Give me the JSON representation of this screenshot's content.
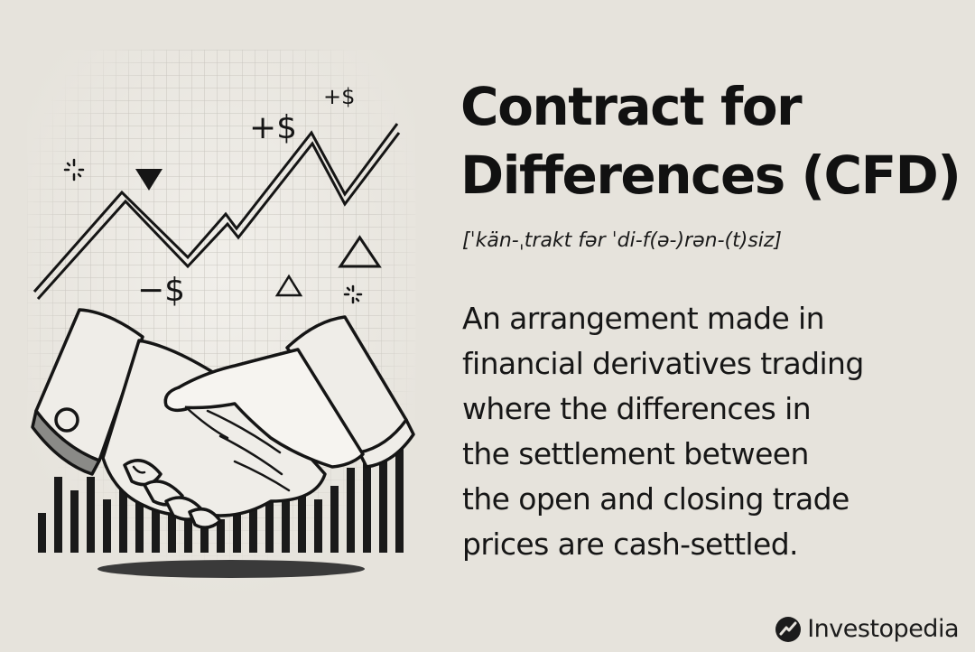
{
  "title": "Contract for Differences (CFD)",
  "pronunciation": "[ˈkän-ˌtrakt fər ˈdi-f(ə-)rən-(t)siz]",
  "definition": "An arrangement made in financial derivatives trading where the differences in the settlement between the open and closing trade prices are cash-settled.",
  "definition_lines": [
    "An arrangement made in",
    "financial derivatives trading",
    "where the differences in",
    "the settlement between",
    "the open and closing trade",
    "prices are cash-settled."
  ],
  "illustration": {
    "label_plus_small": "+$",
    "label_plus_large": "+$",
    "label_minus": "−$"
  },
  "brand": {
    "name": "Investopedia",
    "icon": "investopedia-logo-icon"
  },
  "colors": {
    "background": "#e6e3dc",
    "ink": "#151515",
    "cuff_shade": "#8a8a87"
  }
}
